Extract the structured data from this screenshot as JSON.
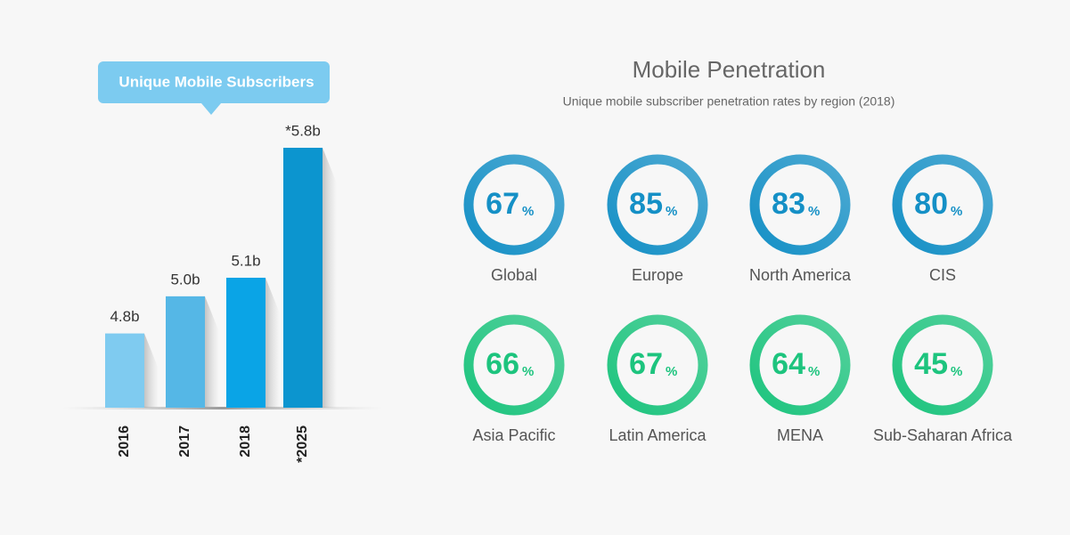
{
  "chart_data": [
    {
      "type": "bar",
      "title": "Unique Mobile Subscribers",
      "categories": [
        "2016",
        "2017",
        "2018",
        "*2025"
      ],
      "values": [
        4.8,
        5.0,
        5.1,
        5.8
      ],
      "value_labels": [
        "4.8b",
        "5.0b",
        "5.1b",
        "*5.8b"
      ],
      "colors": [
        "#7fcbf0",
        "#55b7e6",
        "#0aa4e6",
        "#0c95cf"
      ],
      "ylim": [
        4.4,
        5.8
      ]
    },
    {
      "type": "ring",
      "title": "Mobile Penetration",
      "subtitle": "Unique mobile subscriber penetration rates by region (2018)",
      "categories": [
        "Global",
        "Europe",
        "North America",
        "CIS",
        "Asia Pacific",
        "Latin America",
        "MENA",
        "Sub-Saharan Africa"
      ],
      "values": [
        67,
        85,
        83,
        80,
        66,
        67,
        64,
        45
      ],
      "unit": "%",
      "colors": [
        "#1590c6",
        "#1590c6",
        "#1590c6",
        "#1590c6",
        "#1dc47e",
        "#1dc47e",
        "#1dc47e",
        "#1dc47e"
      ]
    }
  ]
}
